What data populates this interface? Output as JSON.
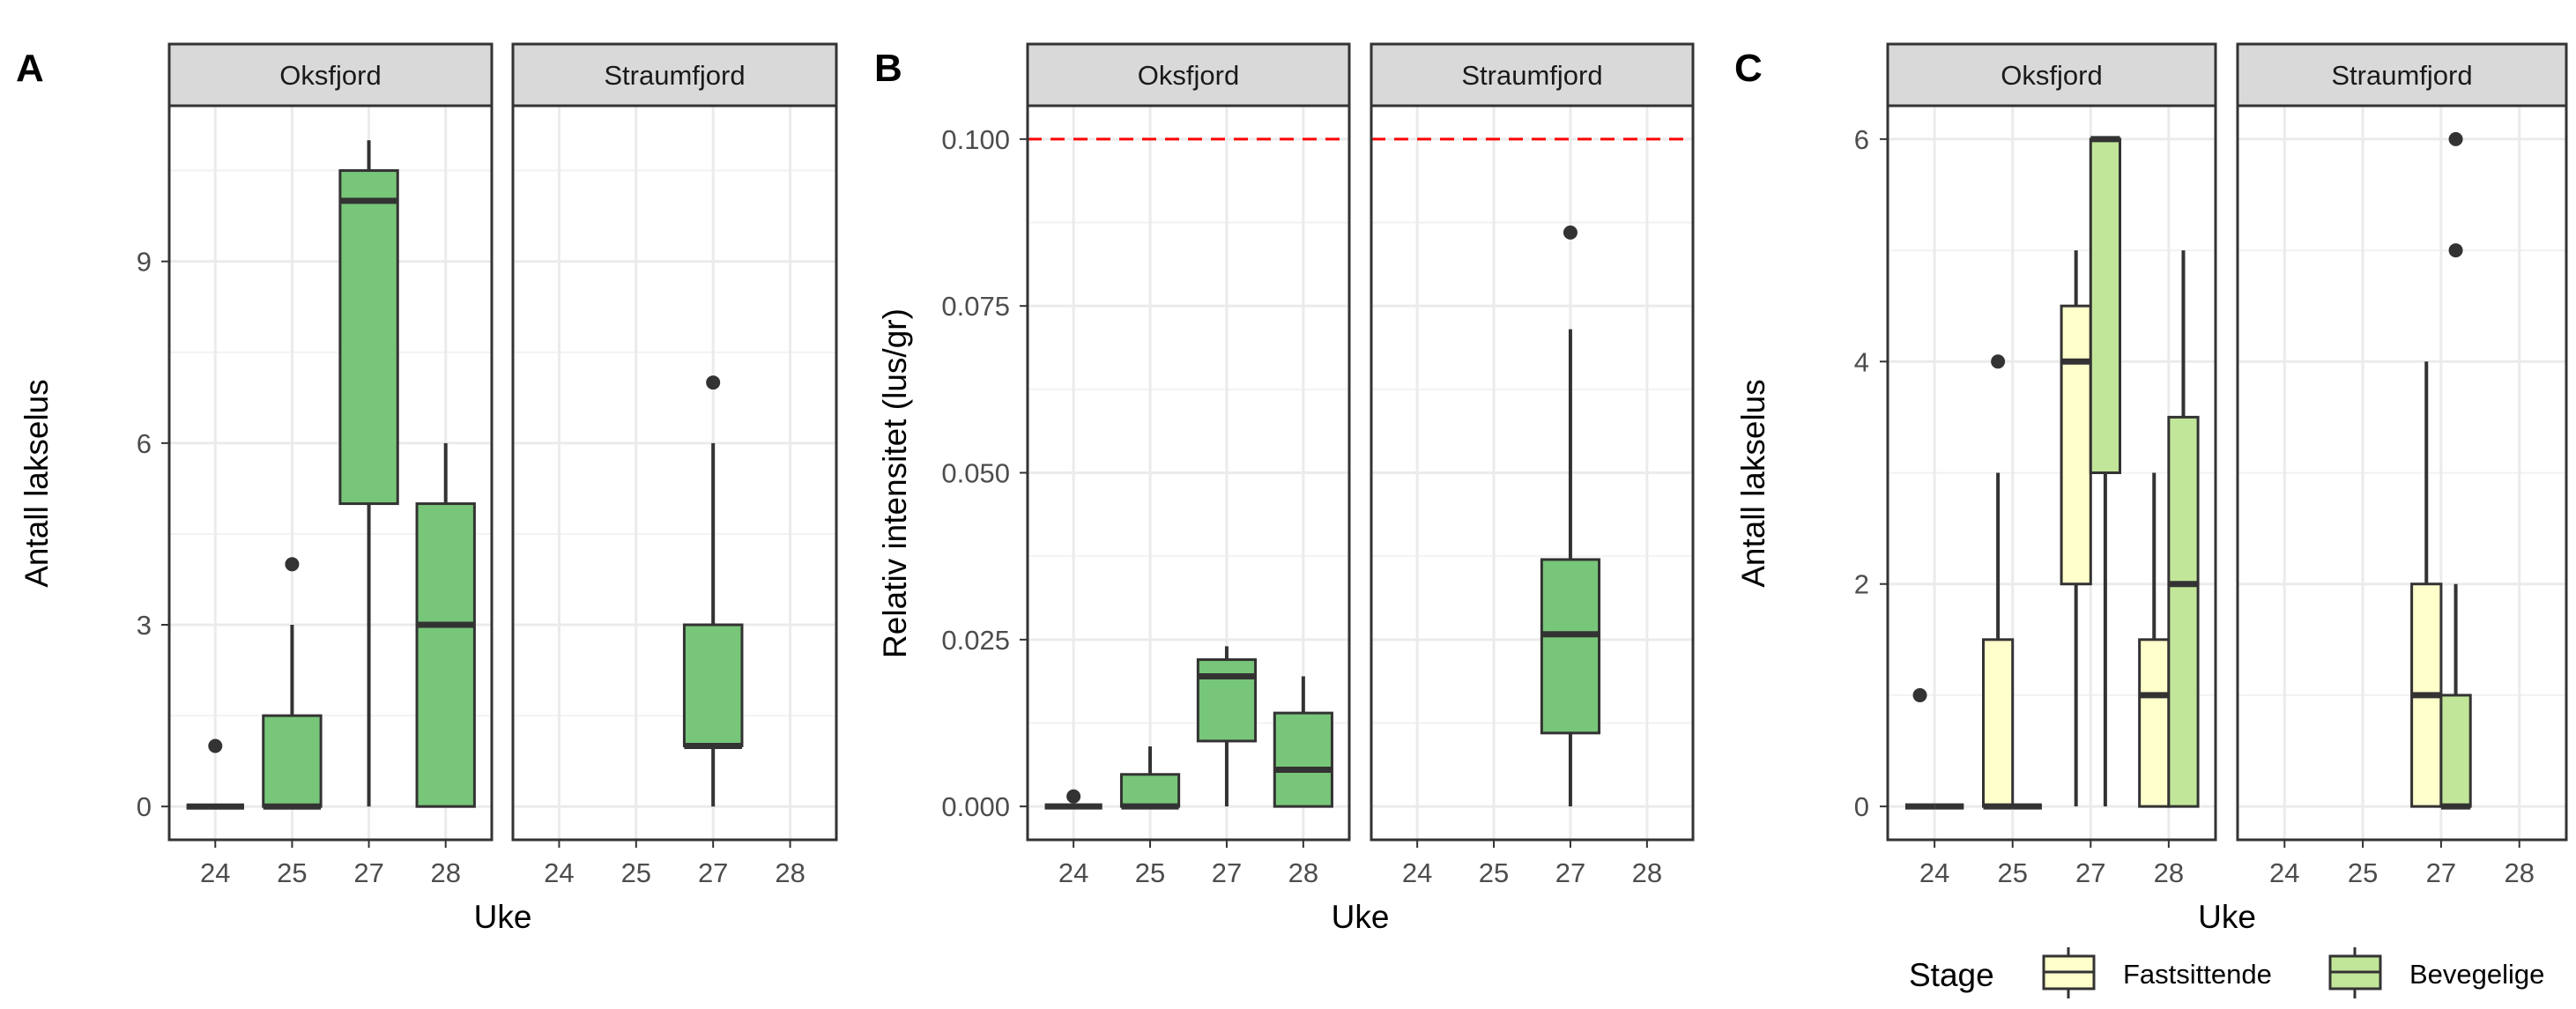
{
  "chart_data": [
    {
      "type": "boxplot",
      "panel_label": "A",
      "xlabel": "Uke",
      "ylabel": "Antall lakselus",
      "ylim": [
        -0.55,
        11.57
      ],
      "yticks": [
        0,
        3,
        6,
        9
      ],
      "yticklabels": [
        "0",
        "3",
        "6",
        "9"
      ],
      "categories": [
        "24",
        "25",
        "27",
        "28"
      ],
      "fill": "#78C679",
      "grid": true,
      "facets": [
        {
          "name": "Oksfjord",
          "boxes": [
            {
              "week": "24",
              "min": 0,
              "q1": 0,
              "med": 0,
              "q3": 0,
              "max": 0,
              "outliers": [
                1
              ]
            },
            {
              "week": "25",
              "min": 0,
              "q1": 0,
              "med": 0,
              "q3": 1.5,
              "max": 3,
              "outliers": [
                4
              ]
            },
            {
              "week": "27",
              "min": 0,
              "q1": 5,
              "med": 10,
              "q3": 10.5,
              "max": 11,
              "outliers": []
            },
            {
              "week": "28",
              "min": 0,
              "q1": 0,
              "med": 3,
              "q3": 5,
              "max": 6,
              "outliers": []
            }
          ]
        },
        {
          "name": "Straumfjord",
          "boxes": [
            {
              "week": "27",
              "min": 0,
              "q1": 1,
              "med": 1,
              "q3": 3,
              "max": 6,
              "outliers": [
                7
              ]
            }
          ]
        }
      ]
    },
    {
      "type": "boxplot",
      "panel_label": "B",
      "xlabel": "Uke",
      "ylabel": "Relativ intensitet (lus/gr)",
      "ylim": [
        -0.005,
        0.105
      ],
      "yticks": [
        0,
        0.025,
        0.05,
        0.075,
        0.1
      ],
      "yticklabels": [
        "0.000",
        "0.025",
        "0.050",
        "0.075",
        "0.100"
      ],
      "categories": [
        "24",
        "25",
        "27",
        "28"
      ],
      "fill": "#78C679",
      "grid": true,
      "reference_line": {
        "y": 0.1,
        "color": "#FF0000",
        "style": "dashed"
      },
      "facets": [
        {
          "name": "Oksfjord",
          "boxes": [
            {
              "week": "24",
              "min": 0,
              "q1": 0,
              "med": 0,
              "q3": 0,
              "max": 0,
              "outliers": [
                0.0015
              ]
            },
            {
              "week": "25",
              "min": 0,
              "q1": 0,
              "med": 0,
              "q3": 0.0048,
              "max": 0.009,
              "outliers": []
            },
            {
              "week": "27",
              "min": 0,
              "q1": 0.0098,
              "med": 0.0195,
              "q3": 0.022,
              "max": 0.024,
              "outliers": []
            },
            {
              "week": "28",
              "min": 0,
              "q1": 0,
              "med": 0.0055,
              "q3": 0.014,
              "max": 0.0195,
              "outliers": []
            }
          ]
        },
        {
          "name": "Straumfjord",
          "boxes": [
            {
              "week": "27",
              "min": 0,
              "q1": 0.011,
              "med": 0.0258,
              "q3": 0.037,
              "max": 0.0715,
              "outliers": [
                0.086
              ]
            }
          ]
        }
      ]
    },
    {
      "type": "boxplot",
      "panel_label": "C",
      "xlabel": "Uke",
      "ylabel": "Antall lakselus",
      "ylim": [
        -0.3,
        6.3
      ],
      "yticks": [
        0,
        2,
        4,
        6
      ],
      "yticklabels": [
        "0",
        "2",
        "4",
        "6"
      ],
      "categories": [
        "24",
        "25",
        "27",
        "28"
      ],
      "grid": true,
      "legend": {
        "title": "Stage",
        "position": "bottom-right",
        "entries": [
          {
            "label": "Fastsittende",
            "fill": "#FFFFCC"
          },
          {
            "label": "Bevegelige",
            "fill": "#C2E699"
          }
        ]
      },
      "facets": [
        {
          "name": "Oksfjord",
          "boxes": [
            {
              "week": "24",
              "stage": 0,
              "min": 0,
              "q1": 0,
              "med": 0,
              "q3": 0,
              "max": 0,
              "outliers": [
                1
              ]
            },
            {
              "week": "24",
              "stage": 1,
              "min": 0,
              "q1": 0,
              "med": 0,
              "q3": 0,
              "max": 0,
              "outliers": []
            },
            {
              "week": "25",
              "stage": 0,
              "min": 0,
              "q1": 0,
              "med": 0,
              "q3": 1.5,
              "max": 3,
              "outliers": [
                4
              ]
            },
            {
              "week": "25",
              "stage": 1,
              "min": 0,
              "q1": 0,
              "med": 0,
              "q3": 0,
              "max": 0,
              "outliers": []
            },
            {
              "week": "27",
              "stage": 0,
              "min": 0,
              "q1": 2,
              "med": 4,
              "q3": 4.5,
              "max": 5,
              "outliers": []
            },
            {
              "week": "27",
              "stage": 1,
              "min": 0,
              "q1": 3,
              "med": 6,
              "q3": 6,
              "max": 6,
              "outliers": []
            },
            {
              "week": "28",
              "stage": 0,
              "min": 0,
              "q1": 0,
              "med": 1,
              "q3": 1.5,
              "max": 3,
              "outliers": []
            },
            {
              "week": "28",
              "stage": 1,
              "min": 0,
              "q1": 0,
              "med": 2,
              "q3": 3.5,
              "max": 5,
              "outliers": []
            }
          ]
        },
        {
          "name": "Straumfjord",
          "boxes": [
            {
              "week": "27",
              "stage": 0,
              "min": 0,
              "q1": 0,
              "med": 1,
              "q3": 2,
              "max": 4,
              "outliers": []
            },
            {
              "week": "27",
              "stage": 1,
              "min": 0,
              "q1": 0,
              "med": 0,
              "q3": 1,
              "max": 2,
              "outliers": [
                5,
                6
              ]
            }
          ]
        }
      ]
    }
  ]
}
